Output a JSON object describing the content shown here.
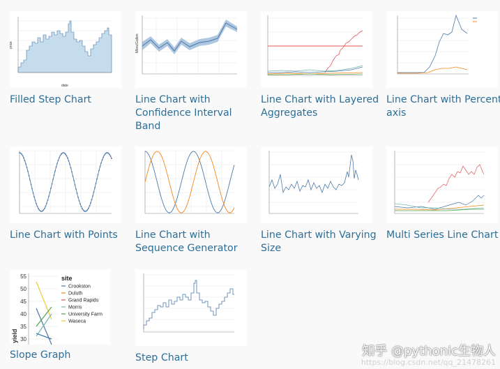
{
  "gallery": {
    "items": [
      {
        "title": "Filled Step Chart"
      },
      {
        "title": "Line Chart with Confidence Interval Band"
      },
      {
        "title": "Line Chart with Layered Aggregates"
      },
      {
        "title": "Line Chart with Percent axis"
      },
      {
        "title": "Line Chart with Points"
      },
      {
        "title": "Line Chart with Sequence Generator"
      },
      {
        "title": "Line Chart with Varying Size"
      },
      {
        "title": "Multi Series Line Chart"
      },
      {
        "title": "Slope Graph"
      },
      {
        "title": "Step Chart"
      }
    ]
  },
  "slope_graph": {
    "legend_title": "site",
    "legend_items": [
      {
        "name": "Crookston",
        "color": "#4c78a8"
      },
      {
        "name": "Duluth",
        "color": "#f58518"
      },
      {
        "name": "Grand Rapids",
        "color": "#e45756"
      },
      {
        "name": "Morris",
        "color": "#72b7b2"
      },
      {
        "name": "University Farm",
        "color": "#54a24b"
      },
      {
        "name": "Waseca",
        "color": "#eeca3b"
      }
    ],
    "y_ticks": [
      "55",
      "50",
      "45",
      "40",
      "35",
      "30"
    ],
    "y_label": "yield"
  },
  "watermark": {
    "text": "知乎 @pythonic生物人",
    "url": "https://blog.csdn.net/qq_21478261"
  },
  "colors": {
    "link": "#2c6e96",
    "area": "#c5dced",
    "line": "#4c78a8",
    "orange": "#f58518",
    "red": "#e45756"
  }
}
